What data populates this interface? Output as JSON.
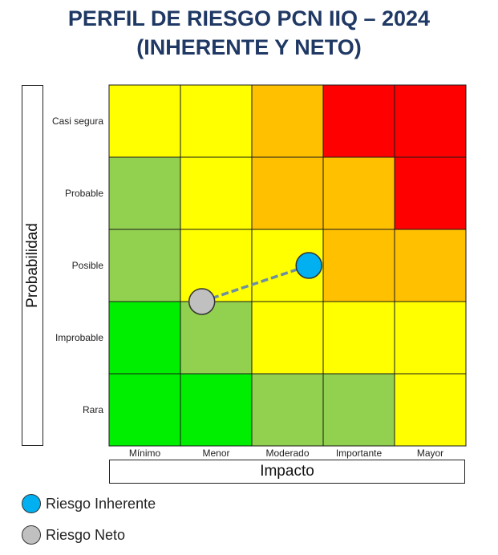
{
  "title_line1": "PERFIL DE RIESGO PCN IIQ – 2024",
  "title_line2": "(INHERENTE Y NETO)",
  "chart_data": {
    "type": "heatmap",
    "xlabel": "Impacto",
    "ylabel": "Probabilidad",
    "x_categories": [
      "Mínimo",
      "Menor",
      "Moderado",
      "Importante",
      "Mayor"
    ],
    "y_categories": [
      "Casi segura",
      "Probable",
      "Posible",
      "Improbable",
      "Rara"
    ],
    "level_colors": {
      "green": "#00ee00",
      "lightgreen": "#92d050",
      "yellow": "#ffff00",
      "orange": "#ffc000",
      "red": "#ff0000"
    },
    "cells": [
      [
        "yellow",
        "yellow",
        "orange",
        "red",
        "red"
      ],
      [
        "lightgreen",
        "yellow",
        "orange",
        "orange",
        "red"
      ],
      [
        "lightgreen",
        "yellow",
        "yellow",
        "orange",
        "orange"
      ],
      [
        "green",
        "lightgreen",
        "yellow",
        "yellow",
        "yellow"
      ],
      [
        "green",
        "green",
        "lightgreen",
        "lightgreen",
        "yellow"
      ]
    ],
    "points": [
      {
        "name": "Riesgo Inherente",
        "impact": 2.8,
        "probability": 2.5,
        "color": "#00b0f0"
      },
      {
        "name": "Riesgo Neto",
        "impact": 1.3,
        "probability": 2.0,
        "color": "#c0c0c0"
      }
    ],
    "connector_color": "#6d8fa3"
  },
  "legend": [
    {
      "label": "Riesgo Inherente",
      "color": "#00b0f0"
    },
    {
      "label": "Riesgo Neto",
      "color": "#c0c0c0"
    }
  ]
}
